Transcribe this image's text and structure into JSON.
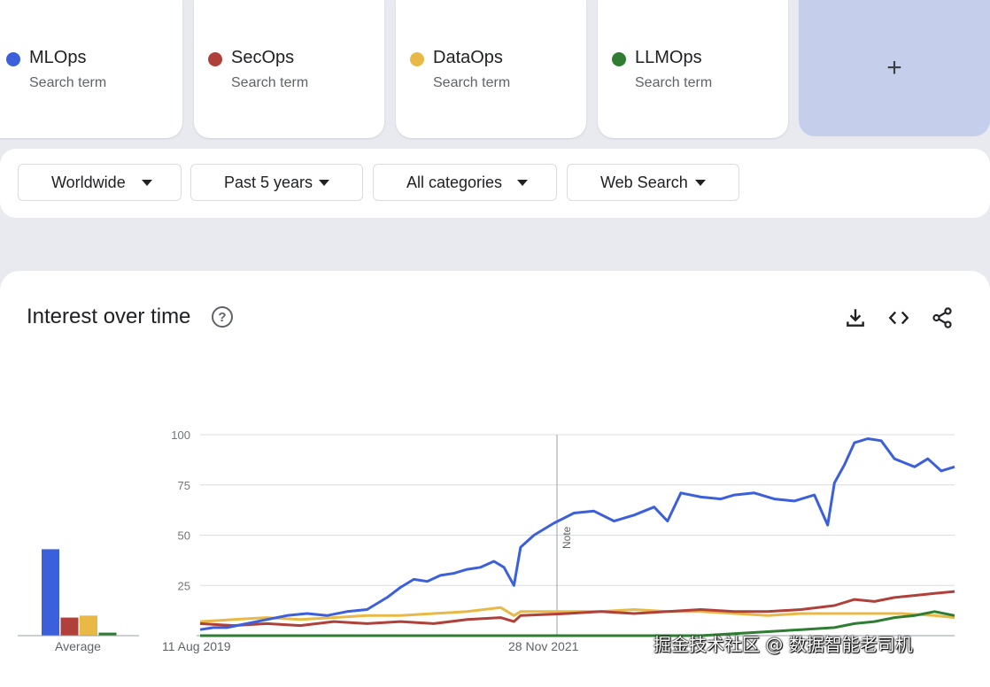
{
  "terms": [
    {
      "name": "MLOps",
      "subtitle": "Search term",
      "color": "#3c5fdb"
    },
    {
      "name": "SecOps",
      "subtitle": "Search term",
      "color": "#b0413a"
    },
    {
      "name": "DataOps",
      "subtitle": "Search term",
      "color": "#e8b945"
    },
    {
      "name": "LLMOps",
      "subtitle": "Search term",
      "color": "#2e7d32"
    }
  ],
  "add_button": {
    "icon": "plus-icon",
    "label": "+"
  },
  "filters": {
    "region": "Worldwide",
    "time_range": "Past 5 years",
    "category": "All categories",
    "search_type": "Web Search"
  },
  "panel": {
    "title": "Interest over time",
    "help": "?",
    "icons": [
      "download-icon",
      "embed-code-icon",
      "share-icon"
    ]
  },
  "watermark": "掘金技术社区 @ 数据智能老司机",
  "chart_data": {
    "type": "line",
    "y_ticks": [
      "100",
      "75",
      "50",
      "25"
    ],
    "ylim": [
      0,
      100
    ],
    "grid": true,
    "x_tick_labels": [
      "11 Aug 2019",
      "28 Nov 2021"
    ],
    "note_label": "Note",
    "note_date": "28 Nov 2021",
    "average_label": "Average",
    "averages": [
      {
        "series": "MLOps",
        "value": 43
      },
      {
        "series": "SecOps",
        "value": 9
      },
      {
        "series": "DataOps",
        "value": 10
      },
      {
        "series": "LLMOps",
        "value": 1.5
      }
    ],
    "series": [
      {
        "name": "MLOps",
        "color": "#3c5fdb",
        "points": [
          [
            0,
            3
          ],
          [
            4,
            4
          ],
          [
            8,
            4
          ],
          [
            14,
            6
          ],
          [
            20,
            8
          ],
          [
            26,
            10
          ],
          [
            32,
            11
          ],
          [
            38,
            10
          ],
          [
            44,
            12
          ],
          [
            50,
            13
          ],
          [
            56,
            19
          ],
          [
            60,
            24
          ],
          [
            64,
            28
          ],
          [
            68,
            27
          ],
          [
            72,
            30
          ],
          [
            76,
            31
          ],
          [
            80,
            33
          ],
          [
            84,
            34
          ],
          [
            88,
            37
          ],
          [
            91,
            34
          ],
          [
            94,
            25
          ],
          [
            96,
            44
          ],
          [
            100,
            50
          ],
          [
            106,
            56
          ],
          [
            112,
            61
          ],
          [
            118,
            62
          ],
          [
            124,
            57
          ],
          [
            130,
            60
          ],
          [
            136,
            64
          ],
          [
            140,
            57
          ],
          [
            144,
            71
          ],
          [
            150,
            69
          ],
          [
            156,
            68
          ],
          [
            160,
            70
          ],
          [
            166,
            71
          ],
          [
            172,
            68
          ],
          [
            178,
            67
          ],
          [
            184,
            70
          ],
          [
            188,
            55
          ],
          [
            190,
            76
          ],
          [
            193,
            85
          ],
          [
            196,
            96
          ],
          [
            200,
            98
          ],
          [
            204,
            97
          ],
          [
            208,
            88
          ],
          [
            214,
            84
          ],
          [
            218,
            88
          ],
          [
            222,
            82
          ],
          [
            226,
            84
          ]
        ]
      },
      {
        "name": "SecOps",
        "color": "#b0413a",
        "points": [
          [
            0,
            6
          ],
          [
            10,
            5
          ],
          [
            20,
            6
          ],
          [
            30,
            5
          ],
          [
            40,
            7
          ],
          [
            50,
            6
          ],
          [
            60,
            7
          ],
          [
            70,
            6
          ],
          [
            80,
            8
          ],
          [
            90,
            9
          ],
          [
            94,
            7
          ],
          [
            96,
            10
          ],
          [
            110,
            11
          ],
          [
            120,
            12
          ],
          [
            130,
            11
          ],
          [
            140,
            12
          ],
          [
            150,
            13
          ],
          [
            160,
            12
          ],
          [
            170,
            12
          ],
          [
            180,
            13
          ],
          [
            190,
            15
          ],
          [
            196,
            18
          ],
          [
            202,
            17
          ],
          [
            208,
            19
          ],
          [
            214,
            20
          ],
          [
            220,
            21
          ],
          [
            226,
            22
          ]
        ]
      },
      {
        "name": "DataOps",
        "color": "#e8b945",
        "points": [
          [
            0,
            7
          ],
          [
            10,
            8
          ],
          [
            20,
            9
          ],
          [
            30,
            8
          ],
          [
            40,
            9
          ],
          [
            50,
            10
          ],
          [
            60,
            10
          ],
          [
            70,
            11
          ],
          [
            80,
            12
          ],
          [
            90,
            14
          ],
          [
            94,
            10
          ],
          [
            96,
            12
          ],
          [
            110,
            12
          ],
          [
            120,
            12
          ],
          [
            130,
            13
          ],
          [
            140,
            12
          ],
          [
            150,
            12
          ],
          [
            160,
            11
          ],
          [
            170,
            10
          ],
          [
            180,
            11
          ],
          [
            190,
            11
          ],
          [
            200,
            11
          ],
          [
            210,
            11
          ],
          [
            220,
            10
          ],
          [
            226,
            9
          ]
        ]
      },
      {
        "name": "LLMOps",
        "color": "#2e7d32",
        "points": [
          [
            0,
            0
          ],
          [
            100,
            0
          ],
          [
            150,
            0
          ],
          [
            160,
            1
          ],
          [
            170,
            2
          ],
          [
            180,
            3
          ],
          [
            190,
            4
          ],
          [
            196,
            6
          ],
          [
            202,
            7
          ],
          [
            208,
            9
          ],
          [
            214,
            10
          ],
          [
            220,
            12
          ],
          [
            226,
            10
          ]
        ]
      }
    ]
  }
}
